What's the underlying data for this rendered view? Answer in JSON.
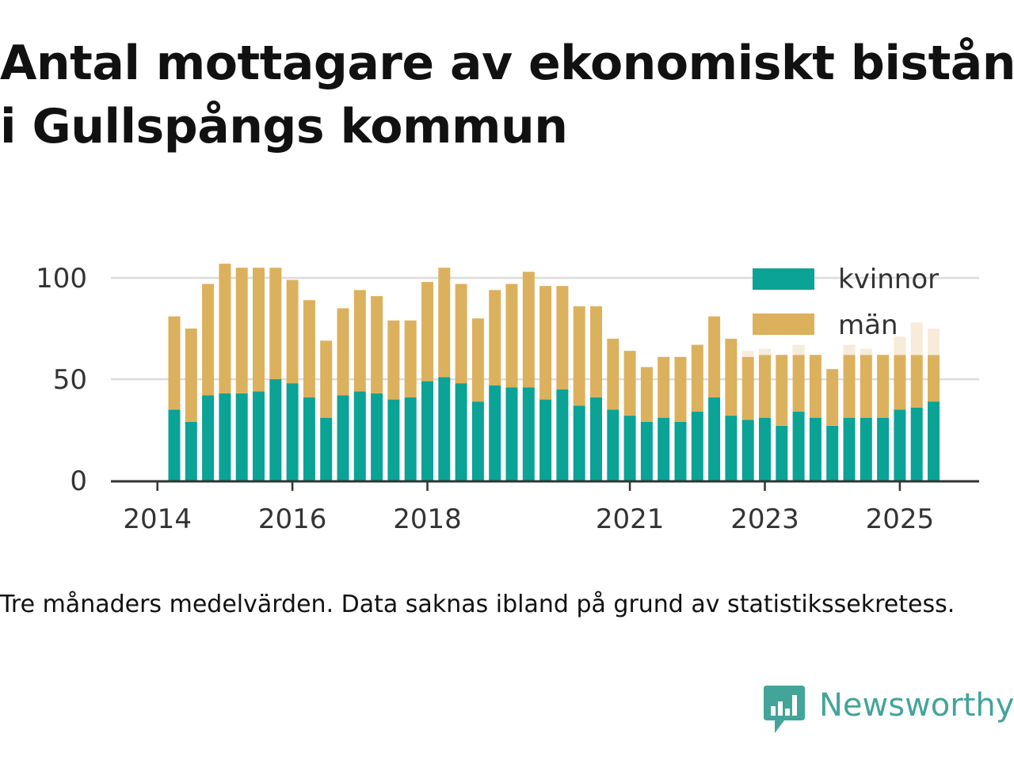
{
  "title_line1": "Antal mottagare av ekonomiskt bistånd",
  "title_line2": "i Gullspångs kommun",
  "caption": "Tre månaders medelvärden. Data saknas ibland på grund av statistikssekretess.",
  "brand": "Newsworthy",
  "colors": {
    "women": "#0aa396",
    "men": "#dcb15d",
    "men_faded": "#f6ecd9",
    "grid": "#dcdcdc",
    "axis": "#333333",
    "brand": "#43a49a"
  },
  "chart_data": {
    "type": "bar",
    "stacked": true,
    "title": "Antal mottagare av ekonomiskt bistånd i Gullspångs kommun",
    "xlabel": "",
    "ylabel": "",
    "ylim": [
      0,
      115
    ],
    "yticks": [
      0,
      50,
      100
    ],
    "xticks": [
      {
        "label": "2014",
        "index": -1.0
      },
      {
        "label": "2016",
        "index": 7.0
      },
      {
        "label": "2018",
        "index": 15.0
      },
      {
        "label": "2021",
        "index": 27.0
      },
      {
        "label": "2023",
        "index": 35.0
      },
      {
        "label": "2025",
        "index": 43.0
      }
    ],
    "legend_position": "top-right",
    "series": [
      {
        "name": "kvinnor",
        "values": [
          35,
          29,
          42,
          43,
          43,
          44,
          50,
          48,
          41,
          31,
          42,
          44,
          43,
          40,
          41,
          49,
          51,
          48,
          39,
          47,
          46,
          46,
          40,
          45,
          37,
          41,
          35,
          32,
          29,
          31,
          29,
          34,
          41,
          32,
          30,
          31,
          27,
          34,
          31,
          27,
          31,
          31,
          31,
          35,
          36,
          39
        ]
      },
      {
        "name": "män",
        "values": [
          46,
          46,
          55,
          64,
          62,
          61,
          55,
          51,
          48,
          38,
          43,
          50,
          48,
          39,
          38,
          49,
          54,
          49,
          41,
          47,
          51,
          57,
          56,
          51,
          49,
          45,
          35,
          32,
          27,
          30,
          32,
          33,
          40,
          38,
          31,
          31,
          35,
          28,
          31,
          28,
          31,
          31,
          31,
          27,
          26,
          23
        ]
      }
    ],
    "faded_series": {
      "name": "män (ofullständig)",
      "base_series": "män",
      "values": [
        0,
        0,
        0,
        0,
        0,
        0,
        0,
        0,
        0,
        0,
        0,
        0,
        0,
        0,
        0,
        0,
        0,
        0,
        0,
        0,
        0,
        0,
        0,
        0,
        0,
        0,
        0,
        0,
        0,
        0,
        0,
        0,
        0,
        0,
        3,
        3,
        0,
        5,
        0,
        0,
        5,
        3,
        0,
        9,
        16,
        13
      ]
    }
  }
}
